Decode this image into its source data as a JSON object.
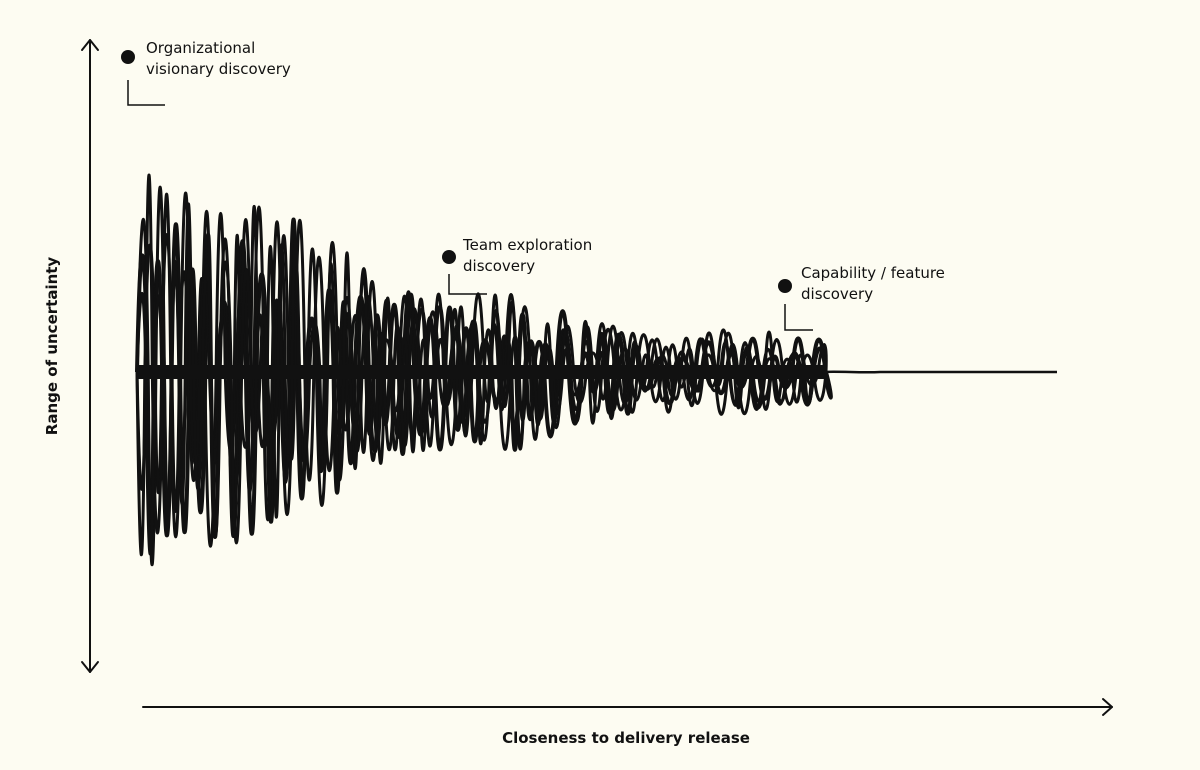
{
  "axes": {
    "y_label": "Range of uncertainty",
    "x_label": "Closeness to delivery release"
  },
  "annotations": [
    {
      "text": "Organizational\nvisionary discovery"
    },
    {
      "text": "Team exploration\ndiscovery"
    },
    {
      "text": "Capability / feature\ndiscovery"
    }
  ],
  "colors": {
    "background": "#fdfcf2",
    "ink": "#111111"
  }
}
